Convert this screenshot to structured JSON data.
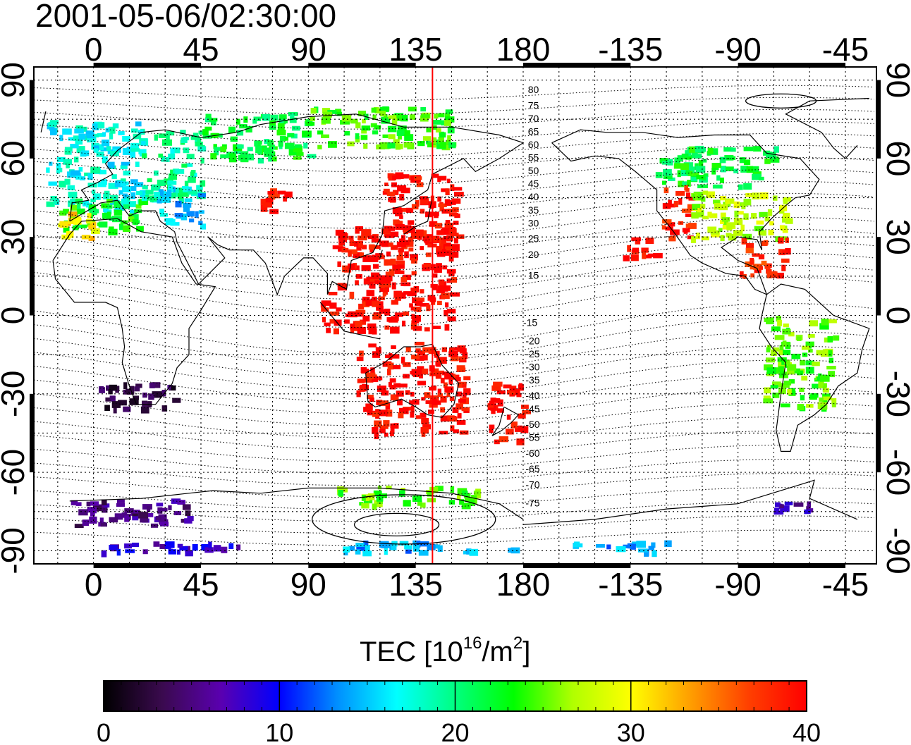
{
  "title": "2001-05-06/02:30:00",
  "map": {
    "lon_ticks_top": [
      "0",
      "45",
      "90",
      "135",
      "180",
      "-135",
      "-90",
      "-45"
    ],
    "lon_ticks_bottom": [
      "0",
      "45",
      "90",
      "135",
      "180",
      "-135",
      "-90",
      "-45"
    ],
    "lat_ticks_left": [
      "90",
      "60",
      "30",
      "0",
      "-30",
      "-60",
      "-90"
    ],
    "lat_ticks_right": [
      "90",
      "60",
      "30",
      "0",
      "-30",
      "-60",
      "-90"
    ],
    "lon_range": [
      -25,
      328
    ],
    "lat_range": [
      -95,
      95
    ],
    "grid": "dotted every 15 degrees",
    "meridian_line": {
      "lon": 142,
      "color": "#ff0000"
    },
    "contour_labels": [
      {
        "text": "80",
        "lon": 182,
        "lat": 85
      },
      {
        "text": "75",
        "lon": 182,
        "lat": 79
      },
      {
        "text": "70",
        "lon": 182,
        "lat": 74
      },
      {
        "text": "65",
        "lon": 182,
        "lat": 69
      },
      {
        "text": "60",
        "lon": 182,
        "lat": 64
      },
      {
        "text": "55",
        "lon": 182,
        "lat": 59
      },
      {
        "text": "50",
        "lon": 182,
        "lat": 54
      },
      {
        "text": "45",
        "lon": 182,
        "lat": 49
      },
      {
        "text": "40",
        "lon": 182,
        "lat": 44
      },
      {
        "text": "35",
        "lon": 182,
        "lat": 39
      },
      {
        "text": "30",
        "lon": 182,
        "lat": 34
      },
      {
        "text": "25",
        "lon": 182,
        "lat": 28
      },
      {
        "text": "20",
        "lon": 182,
        "lat": 22
      },
      {
        "text": "15",
        "lon": 182,
        "lat": 14
      },
      {
        "text": "-15",
        "lon": 180,
        "lat": -4
      },
      {
        "text": "-20",
        "lon": 181,
        "lat": -11
      },
      {
        "text": "-25",
        "lon": 181,
        "lat": -16
      },
      {
        "text": "-30",
        "lon": 181,
        "lat": -21
      },
      {
        "text": "-35",
        "lon": 181,
        "lat": -26
      },
      {
        "text": "-40",
        "lon": 181,
        "lat": -32
      },
      {
        "text": "-45",
        "lon": 181,
        "lat": -37
      },
      {
        "text": "-50",
        "lon": 181,
        "lat": -43
      },
      {
        "text": "-55",
        "lon": 181,
        "lat": -48
      },
      {
        "text": "-60",
        "lon": 181,
        "lat": -54
      },
      {
        "text": "-65",
        "lon": 181,
        "lat": -60
      },
      {
        "text": "-70",
        "lon": 181,
        "lat": -66
      },
      {
        "text": "-75",
        "lon": 181,
        "lat": -73
      }
    ],
    "tec_regions": [
      {
        "lon": [
          -20,
          20
        ],
        "lat": [
          40,
          75
        ],
        "tec": 17
      },
      {
        "lon": [
          -15,
          20
        ],
        "lat": [
          33,
          45
        ],
        "tec": 23
      },
      {
        "lon": [
          -15,
          0
        ],
        "lat": [
          30,
          40
        ],
        "tec": 31
      },
      {
        "lon": [
          20,
          45
        ],
        "lat": [
          45,
          72
        ],
        "tec": 19
      },
      {
        "lon": [
          25,
          45
        ],
        "lat": [
          35,
          50
        ],
        "tec": 15
      },
      {
        "lon": [
          45,
          90
        ],
        "lat": [
          60,
          78
        ],
        "tec": 22
      },
      {
        "lon": [
          70,
          80
        ],
        "lat": [
          40,
          50
        ],
        "tec": 39
      },
      {
        "lon": [
          90,
          150
        ],
        "lat": [
          65,
          80
        ],
        "tec": 24
      },
      {
        "lon": [
          120,
          152
        ],
        "lat": [
          25,
          55
        ],
        "tec": 40
      },
      {
        "lon": [
          100,
          150
        ],
        "lat": [
          10,
          35
        ],
        "tec": 40
      },
      {
        "lon": [
          95,
          150
        ],
        "lat": [
          -5,
          10
        ],
        "tec": 40
      },
      {
        "lon": [
          110,
          155
        ],
        "lat": [
          -45,
          -10
        ],
        "tec": 40
      },
      {
        "lon": [
          165,
          180
        ],
        "lat": [
          -48,
          -25
        ],
        "tec": 40
      },
      {
        "lon": [
          220,
          235
        ],
        "lat": [
          22,
          30
        ],
        "tec": 40
      },
      {
        "lon": [
          235,
          285
        ],
        "lat": [
          50,
          65
        ],
        "tec": 22
      },
      {
        "lon": [
          238,
          250
        ],
        "lat": [
          30,
          50
        ],
        "tec": 39
      },
      {
        "lon": [
          250,
          290
        ],
        "lat": [
          30,
          48
        ],
        "tec": 27
      },
      {
        "lon": [
          270,
          290
        ],
        "lat": [
          15,
          30
        ],
        "tec": 38
      },
      {
        "lon": [
          280,
          310
        ],
        "lat": [
          -35,
          0
        ],
        "tec": 25
      },
      {
        "lon": [
          0,
          35
        ],
        "lat": [
          -35,
          -25
        ],
        "tec": 3
      },
      {
        "lon": [
          -10,
          40
        ],
        "lat": [
          -80,
          -70
        ],
        "tec": 5
      },
      {
        "lon": [
          100,
          160
        ],
        "lat": [
          -72,
          -65
        ],
        "tec": 25
      },
      {
        "lon": [
          0,
          60
        ],
        "lat": [
          -90,
          -86
        ],
        "tec": 8
      },
      {
        "lon": [
          100,
          175
        ],
        "lat": [
          -90,
          -86
        ],
        "tec": 14
      },
      {
        "lon": [
          200,
          240
        ],
        "lat": [
          -90,
          -86
        ],
        "tec": 14
      },
      {
        "lon": [
          285,
          300
        ],
        "lat": [
          -75,
          -70
        ],
        "tec": 7
      }
    ]
  },
  "colorbar": {
    "title_main": "TEC  [10",
    "title_exp1": "16",
    "title_mid": "/m",
    "title_exp2": "2",
    "title_end": "]",
    "tick_labels": [
      "0",
      "10",
      "20",
      "30",
      "40"
    ],
    "range": [
      0,
      40
    ],
    "stops": [
      "#000000",
      "#3a0a4e",
      "#5a00b0",
      "#0000ff",
      "#0090ff",
      "#00ffff",
      "#00ff80",
      "#00ff00",
      "#b0ff00",
      "#ffff00",
      "#ffa000",
      "#ff4000",
      "#ff0000"
    ]
  }
}
